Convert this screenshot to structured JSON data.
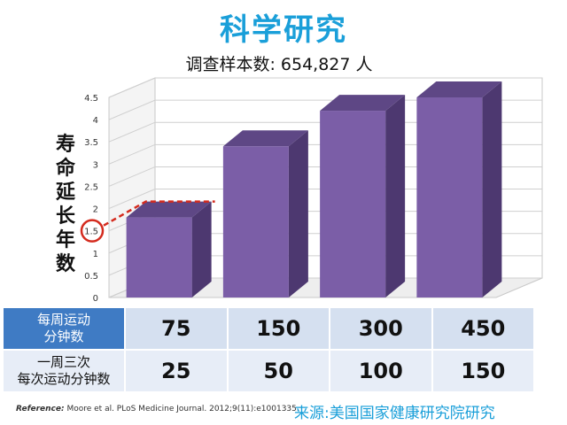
{
  "title": "科学研究",
  "subtitle": "调查样本数: 654,827 人",
  "chart_data": {
    "type": "bar",
    "title": "科学研究",
    "subtitle": "调查样本数: 654,827 人",
    "ylabel": "寿命延长年数",
    "categories": [
      "75",
      "150",
      "300",
      "450"
    ],
    "values": [
      1.8,
      3.4,
      4.2,
      4.5
    ],
    "ylim": [
      0,
      4.5
    ],
    "yticks": [
      "0",
      "0.5",
      "1",
      "1.5",
      "2",
      "2.5",
      "3",
      "3.5",
      "4",
      "4.5"
    ],
    "highlighted_tick": "1.5",
    "grid": true,
    "bar_color": "#7b5ea7"
  },
  "table": {
    "row1_header": "每周运动\n分钟数",
    "row1_values": [
      "75",
      "150",
      "300",
      "450"
    ],
    "row2_header": "一周三次\n每次运动分钟数",
    "row2_values": [
      "25",
      "50",
      "100",
      "150"
    ]
  },
  "reference": {
    "label": "Reference:",
    "text": "Moore et al. PLoS Medicine Journal. 2012;9(11):e1001335."
  },
  "source": "来源:美国国家健康研究院研究",
  "colors": {
    "title": "#1a9fd9",
    "header_blue": "#3f7bc4",
    "bar": "#7b5ea7"
  }
}
